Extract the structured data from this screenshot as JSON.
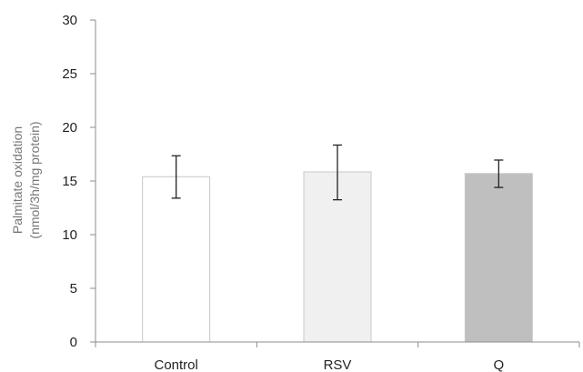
{
  "chart_data": {
    "type": "bar",
    "title": "",
    "xlabel": "",
    "ylabel": [
      "Palmitate oxidation",
      "(nmol/3h/mg protein)"
    ],
    "categories": [
      "Control",
      "RSV",
      "Q"
    ],
    "values": [
      15.4,
      15.85,
      15.7
    ],
    "error_bars": [
      {
        "upper": 17.35,
        "lower": 13.4
      },
      {
        "upper": 18.35,
        "lower": 13.25
      },
      {
        "upper": 16.95,
        "lower": 14.4
      }
    ],
    "bar_colors": [
      "#ffffff",
      "#f0f0f0",
      "#bfbfbf"
    ],
    "bar_edge_color": "#c8c8c8",
    "ylim": [
      0,
      30
    ],
    "yticks": [
      0,
      5,
      10,
      15,
      20,
      25,
      30
    ],
    "grid": false,
    "legend": "none"
  }
}
